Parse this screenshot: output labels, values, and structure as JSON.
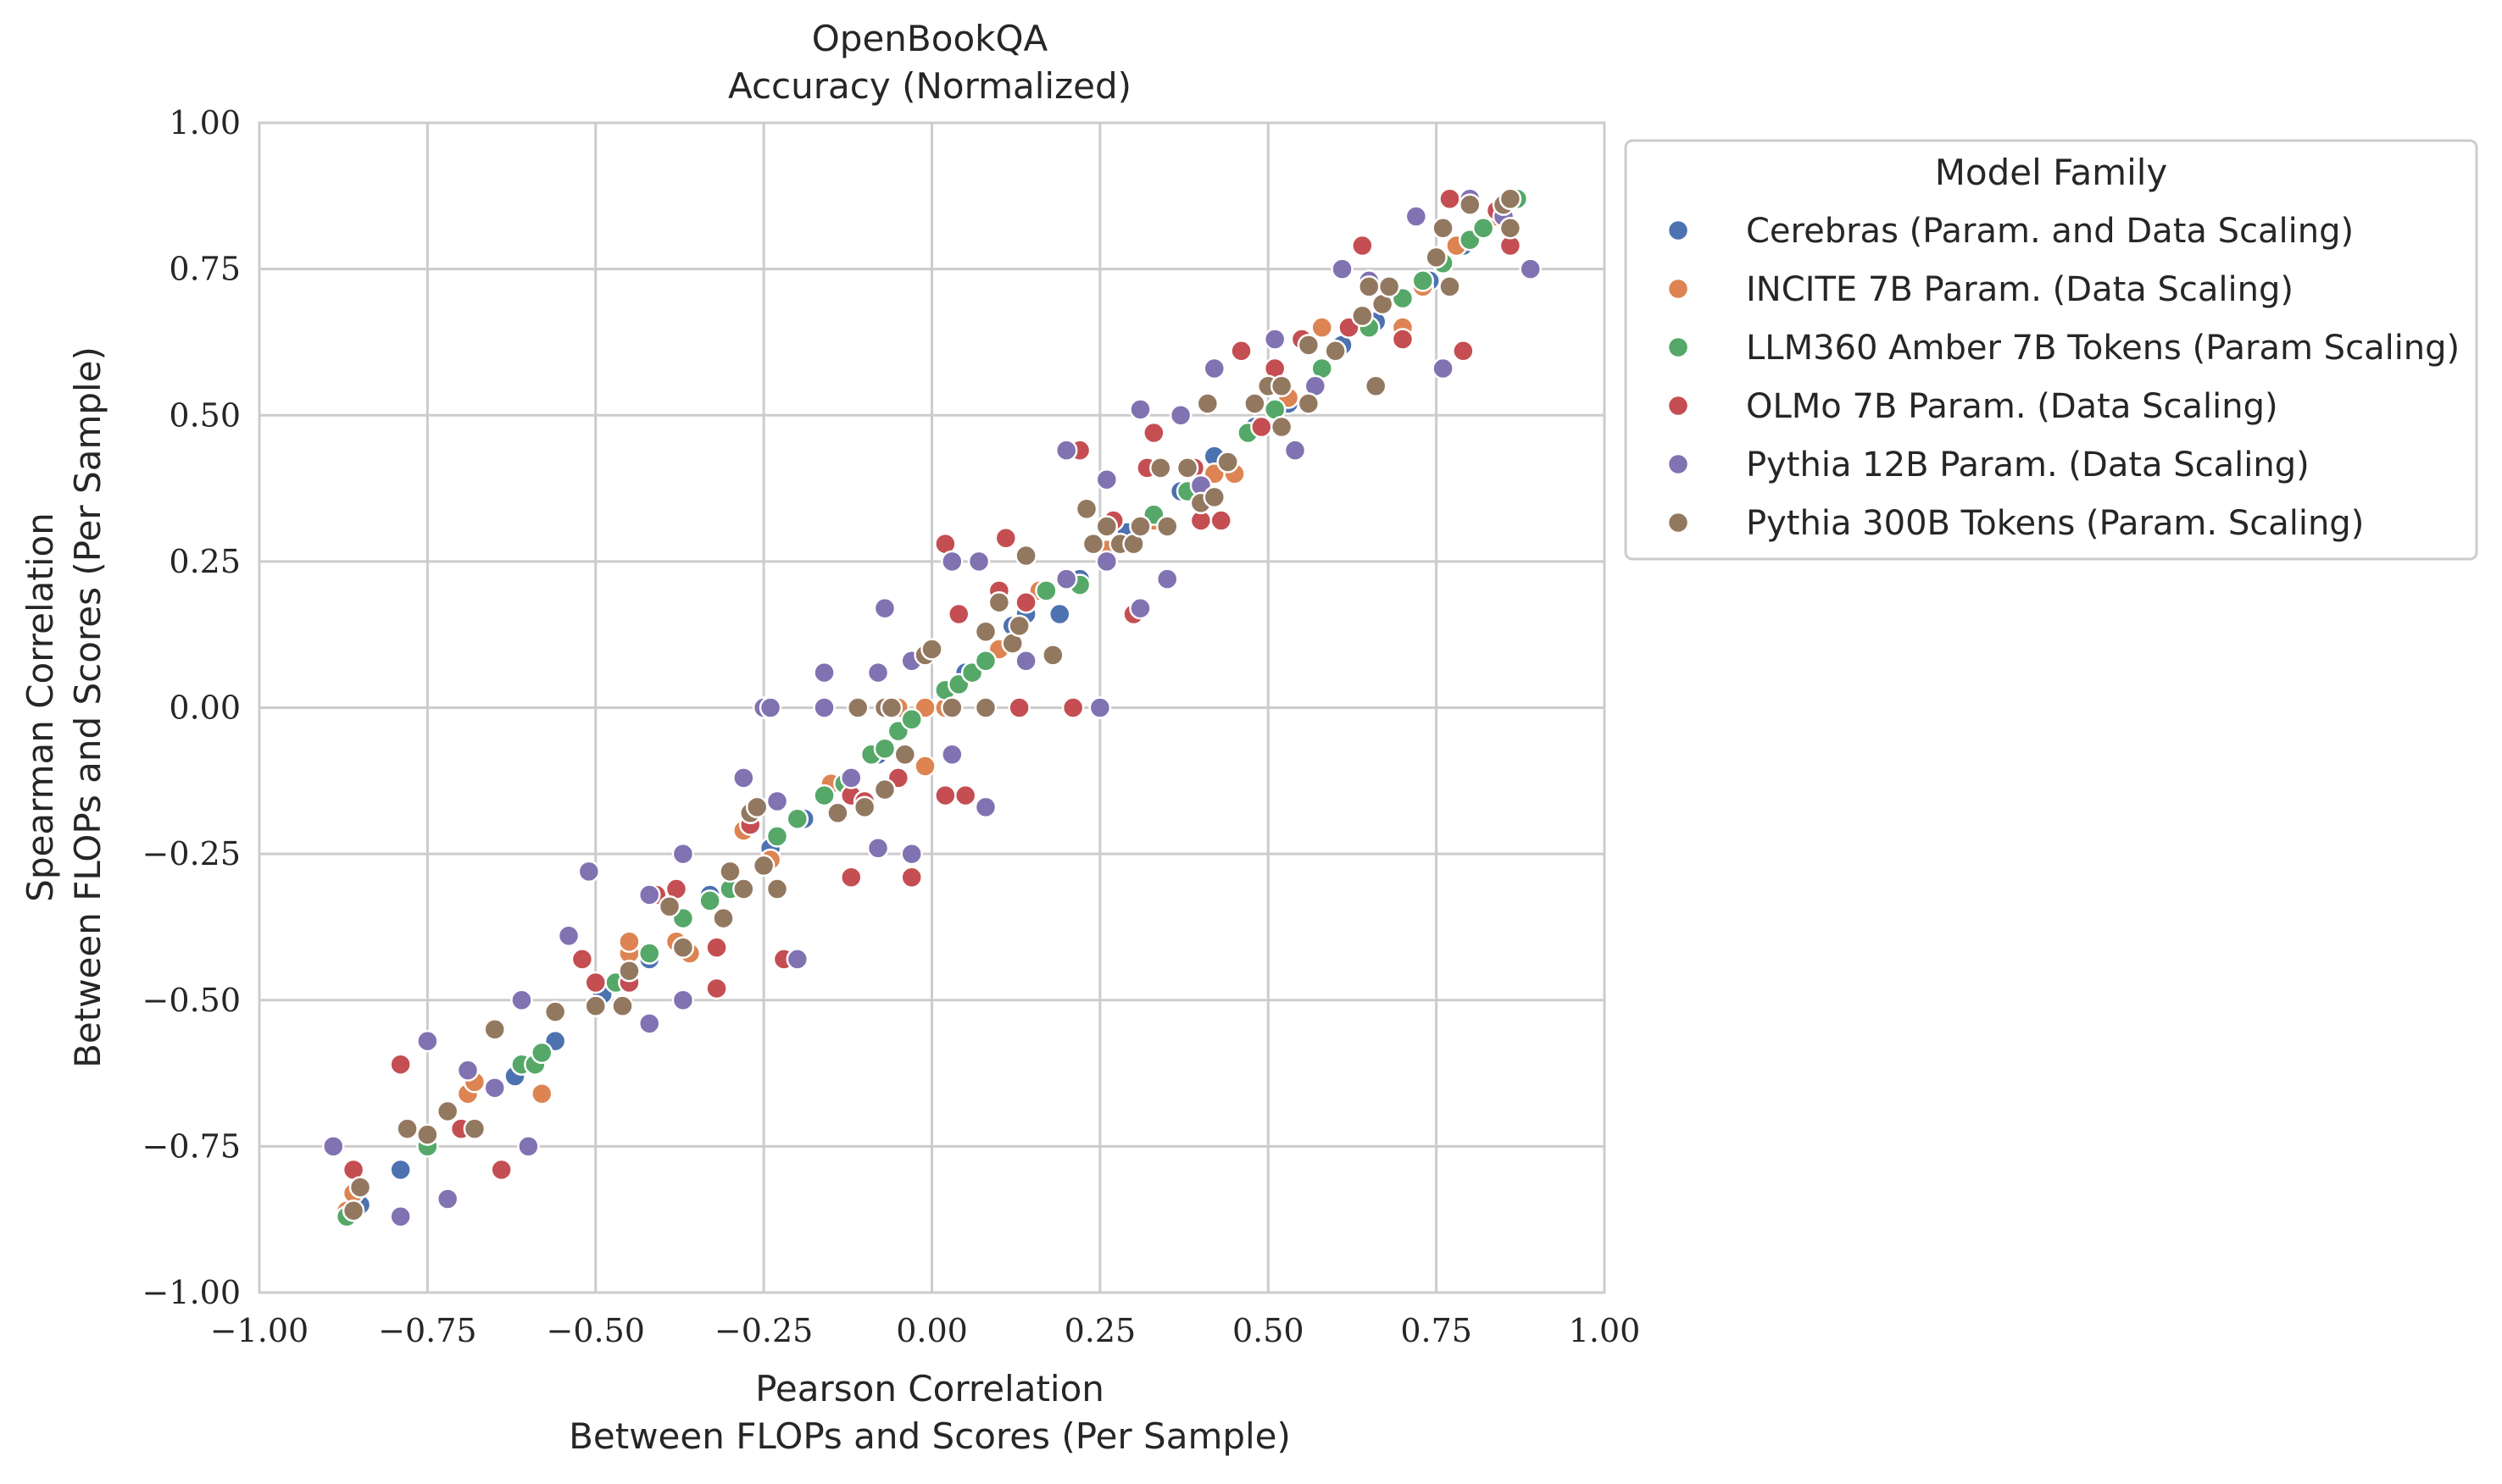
{
  "chart_data": {
    "type": "scatter",
    "title": "OpenBookQA",
    "subtitle": "Accuracy (Normalized)",
    "xlabel_line1": "Pearson Correlation",
    "xlabel_line2": "Between FLOPs and Scores (Per Sample)",
    "ylabel_line1": "Spearman Correlation",
    "ylabel_line2": "Between FLOPs and Scores (Per Sample)",
    "xlim": [
      -1.0,
      1.0
    ],
    "ylim": [
      -1.0,
      1.0
    ],
    "xticks": [
      -1.0,
      -0.75,
      -0.5,
      -0.25,
      0.0,
      0.25,
      0.5,
      0.75,
      1.0
    ],
    "yticks": [
      -1.0,
      -0.75,
      -0.5,
      -0.25,
      0.0,
      0.25,
      0.5,
      0.75,
      1.0
    ],
    "xtick_labels": [
      "−1.00",
      "−0.75",
      "−0.50",
      "−0.25",
      "0.00",
      "0.25",
      "0.50",
      "0.75",
      "1.00"
    ],
    "ytick_labels": [
      "−1.00",
      "−0.75",
      "−0.50",
      "−0.25",
      "0.00",
      "0.25",
      "0.50",
      "0.75",
      "1.00"
    ],
    "grid": true,
    "legend_title": "Model Family",
    "legend_placement": "outside right, top",
    "series": [
      {
        "name": "Cerebras (Param. and Data Scaling)",
        "color": "#4c72b0",
        "points": [
          [
            -0.79,
            -0.79
          ],
          [
            -0.85,
            -0.85
          ],
          [
            -0.62,
            -0.63
          ],
          [
            -0.6,
            -0.61
          ],
          [
            -0.56,
            -0.57
          ],
          [
            -0.49,
            -0.49
          ],
          [
            -0.42,
            -0.43
          ],
          [
            -0.33,
            -0.32
          ],
          [
            -0.3,
            -0.31
          ],
          [
            -0.24,
            -0.24
          ],
          [
            -0.19,
            -0.19
          ],
          [
            -0.13,
            -0.13
          ],
          [
            -0.08,
            -0.08
          ],
          [
            0.05,
            0.06
          ],
          [
            0.12,
            0.14
          ],
          [
            0.14,
            0.16
          ],
          [
            0.19,
            0.16
          ],
          [
            0.22,
            0.22
          ],
          [
            0.29,
            0.3
          ],
          [
            0.37,
            0.37
          ],
          [
            0.42,
            0.43
          ],
          [
            0.48,
            0.48
          ],
          [
            0.53,
            0.52
          ],
          [
            0.61,
            0.62
          ],
          [
            0.66,
            0.66
          ],
          [
            0.74,
            0.73
          ],
          [
            0.79,
            0.79
          ],
          [
            0.85,
            0.85
          ],
          [
            0.87,
            0.87
          ]
        ]
      },
      {
        "name": "INCITE 7B Param. (Data Scaling)",
        "color": "#dd8452",
        "points": [
          [
            -0.87,
            -0.86
          ],
          [
            -0.86,
            -0.83
          ],
          [
            -0.69,
            -0.66
          ],
          [
            -0.68,
            -0.64
          ],
          [
            -0.58,
            -0.66
          ],
          [
            -0.45,
            -0.42
          ],
          [
            -0.45,
            -0.4
          ],
          [
            -0.38,
            -0.4
          ],
          [
            -0.36,
            -0.42
          ],
          [
            -0.28,
            -0.21
          ],
          [
            -0.24,
            -0.26
          ],
          [
            -0.15,
            -0.13
          ],
          [
            -0.05,
            0.0
          ],
          [
            -0.01,
            0.0
          ],
          [
            0.02,
            0.0
          ],
          [
            -0.01,
            -0.1
          ],
          [
            0.1,
            0.1
          ],
          [
            0.16,
            0.2
          ],
          [
            0.26,
            0.27
          ],
          [
            0.33,
            0.32
          ],
          [
            0.42,
            0.4
          ],
          [
            0.45,
            0.4
          ],
          [
            0.53,
            0.53
          ],
          [
            0.58,
            0.65
          ],
          [
            0.7,
            0.65
          ],
          [
            0.73,
            0.72
          ],
          [
            0.78,
            0.79
          ],
          [
            0.84,
            0.84
          ],
          [
            0.87,
            0.87
          ]
        ]
      },
      {
        "name": "LLM360 Amber 7B Tokens (Param Scaling)",
        "color": "#55a868",
        "points": [
          [
            -0.87,
            -0.87
          ],
          [
            -0.75,
            -0.75
          ],
          [
            -0.61,
            -0.61
          ],
          [
            -0.59,
            -0.61
          ],
          [
            -0.58,
            -0.59
          ],
          [
            -0.5,
            -0.51
          ],
          [
            -0.47,
            -0.47
          ],
          [
            -0.42,
            -0.42
          ],
          [
            -0.37,
            -0.36
          ],
          [
            -0.33,
            -0.33
          ],
          [
            -0.3,
            -0.31
          ],
          [
            -0.23,
            -0.22
          ],
          [
            -0.2,
            -0.19
          ],
          [
            -0.16,
            -0.15
          ],
          [
            -0.13,
            -0.13
          ],
          [
            -0.09,
            -0.08
          ],
          [
            -0.07,
            -0.07
          ],
          [
            -0.05,
            -0.04
          ],
          [
            -0.03,
            -0.02
          ],
          [
            0.02,
            0.03
          ],
          [
            0.04,
            0.04
          ],
          [
            0.06,
            0.06
          ],
          [
            0.08,
            0.08
          ],
          [
            0.17,
            0.2
          ],
          [
            0.22,
            0.21
          ],
          [
            0.31,
            0.31
          ],
          [
            0.33,
            0.33
          ],
          [
            0.38,
            0.37
          ],
          [
            0.47,
            0.47
          ],
          [
            0.51,
            0.51
          ],
          [
            0.58,
            0.58
          ],
          [
            0.65,
            0.65
          ],
          [
            0.7,
            0.7
          ],
          [
            0.73,
            0.73
          ],
          [
            0.76,
            0.76
          ],
          [
            0.8,
            0.8
          ],
          [
            0.82,
            0.82
          ],
          [
            0.87,
            0.87
          ]
        ]
      },
      {
        "name": "OLMo 7B Param. (Data Scaling)",
        "color": "#c44e52",
        "points": [
          [
            -0.86,
            -0.79
          ],
          [
            -0.79,
            -0.61
          ],
          [
            -0.7,
            -0.72
          ],
          [
            -0.64,
            -0.79
          ],
          [
            -0.52,
            -0.43
          ],
          [
            -0.5,
            -0.47
          ],
          [
            -0.45,
            -0.47
          ],
          [
            -0.41,
            -0.32
          ],
          [
            -0.38,
            -0.31
          ],
          [
            -0.32,
            -0.48
          ],
          [
            -0.32,
            -0.41
          ],
          [
            -0.27,
            -0.2
          ],
          [
            -0.22,
            -0.43
          ],
          [
            -0.12,
            -0.29
          ],
          [
            -0.12,
            -0.15
          ],
          [
            -0.1,
            -0.16
          ],
          [
            -0.05,
            -0.12
          ],
          [
            -0.03,
            -0.29
          ],
          [
            0.02,
            -0.15
          ],
          [
            0.05,
            -0.15
          ],
          [
            0.04,
            0.16
          ],
          [
            0.1,
            0.2
          ],
          [
            0.11,
            0.29
          ],
          [
            0.14,
            0.18
          ],
          [
            0.13,
            0.0
          ],
          [
            0.21,
            0.0
          ],
          [
            0.25,
            0.0
          ],
          [
            0.27,
            0.32
          ],
          [
            0.3,
            0.16
          ],
          [
            0.32,
            0.41
          ],
          [
            0.33,
            0.47
          ],
          [
            0.39,
            0.41
          ],
          [
            0.4,
            0.32
          ],
          [
            0.43,
            0.32
          ],
          [
            0.46,
            0.61
          ],
          [
            0.49,
            0.48
          ],
          [
            0.51,
            0.58
          ],
          [
            0.55,
            0.63
          ],
          [
            0.62,
            0.65
          ],
          [
            0.64,
            0.79
          ],
          [
            0.7,
            0.63
          ],
          [
            0.77,
            0.87
          ],
          [
            0.79,
            0.61
          ],
          [
            0.86,
            0.79
          ],
          [
            0.84,
            0.85
          ],
          [
            0.02,
            0.28
          ],
          [
            0.22,
            0.44
          ]
        ]
      },
      {
        "name": "Pythia 12B Param. (Data Scaling)",
        "color": "#8172b2",
        "points": [
          [
            -0.89,
            -0.75
          ],
          [
            -0.79,
            -0.87
          ],
          [
            -0.75,
            -0.57
          ],
          [
            -0.72,
            -0.84
          ],
          [
            -0.69,
            -0.62
          ],
          [
            -0.65,
            -0.65
          ],
          [
            -0.61,
            -0.5
          ],
          [
            -0.6,
            -0.75
          ],
          [
            -0.54,
            -0.39
          ],
          [
            -0.51,
            -0.28
          ],
          [
            -0.42,
            -0.54
          ],
          [
            -0.42,
            -0.32
          ],
          [
            -0.37,
            -0.5
          ],
          [
            -0.37,
            -0.25
          ],
          [
            -0.28,
            -0.12
          ],
          [
            -0.25,
            0.0
          ],
          [
            -0.24,
            0.0
          ],
          [
            -0.23,
            -0.16
          ],
          [
            -0.2,
            -0.43
          ],
          [
            -0.16,
            0.06
          ],
          [
            -0.16,
            0.0
          ],
          [
            -0.12,
            -0.12
          ],
          [
            -0.08,
            0.06
          ],
          [
            -0.08,
            -0.24
          ],
          [
            -0.07,
            0.17
          ],
          [
            -0.03,
            -0.25
          ],
          [
            -0.03,
            0.08
          ],
          [
            0.03,
            0.25
          ],
          [
            0.03,
            -0.08
          ],
          [
            0.07,
            0.25
          ],
          [
            0.08,
            -0.17
          ],
          [
            0.14,
            0.08
          ],
          [
            0.2,
            0.22
          ],
          [
            0.2,
            0.44
          ],
          [
            0.25,
            0.0
          ],
          [
            0.26,
            0.25
          ],
          [
            0.26,
            0.39
          ],
          [
            0.31,
            0.17
          ],
          [
            0.31,
            0.51
          ],
          [
            0.35,
            0.22
          ],
          [
            0.37,
            0.5
          ],
          [
            0.4,
            0.38
          ],
          [
            0.42,
            0.58
          ],
          [
            0.51,
            0.63
          ],
          [
            0.54,
            0.44
          ],
          [
            0.57,
            0.55
          ],
          [
            0.61,
            0.75
          ],
          [
            0.65,
            0.73
          ],
          [
            0.72,
            0.84
          ],
          [
            0.76,
            0.58
          ],
          [
            0.8,
            0.87
          ],
          [
            0.85,
            0.84
          ],
          [
            0.89,
            0.75
          ]
        ]
      },
      {
        "name": "Pythia 300B Tokens (Param. Scaling)",
        "color": "#937860",
        "points": [
          [
            -0.86,
            -0.86
          ],
          [
            -0.85,
            -0.82
          ],
          [
            -0.78,
            -0.72
          ],
          [
            -0.75,
            -0.73
          ],
          [
            -0.72,
            -0.69
          ],
          [
            -0.68,
            -0.72
          ],
          [
            -0.65,
            -0.55
          ],
          [
            -0.56,
            -0.52
          ],
          [
            -0.5,
            -0.51
          ],
          [
            -0.46,
            -0.51
          ],
          [
            -0.45,
            -0.45
          ],
          [
            -0.39,
            -0.34
          ],
          [
            -0.37,
            -0.41
          ],
          [
            -0.31,
            -0.36
          ],
          [
            -0.3,
            -0.28
          ],
          [
            -0.28,
            -0.31
          ],
          [
            -0.27,
            -0.18
          ],
          [
            -0.26,
            -0.17
          ],
          [
            -0.25,
            -0.27
          ],
          [
            -0.23,
            -0.31
          ],
          [
            -0.14,
            -0.18
          ],
          [
            -0.11,
            0.0
          ],
          [
            -0.1,
            -0.17
          ],
          [
            -0.07,
            0.0
          ],
          [
            -0.07,
            -0.14
          ],
          [
            -0.06,
            0.0
          ],
          [
            -0.04,
            -0.08
          ],
          [
            -0.01,
            0.09
          ],
          [
            0.0,
            0.1
          ],
          [
            0.03,
            0.0
          ],
          [
            0.08,
            0.0
          ],
          [
            0.08,
            0.13
          ],
          [
            0.1,
            0.18
          ],
          [
            0.12,
            0.11
          ],
          [
            0.13,
            0.14
          ],
          [
            0.14,
            0.26
          ],
          [
            0.18,
            0.09
          ],
          [
            0.23,
            0.34
          ],
          [
            0.24,
            0.28
          ],
          [
            0.26,
            0.31
          ],
          [
            0.28,
            0.28
          ],
          [
            0.3,
            0.28
          ],
          [
            0.31,
            0.31
          ],
          [
            0.34,
            0.41
          ],
          [
            0.35,
            0.31
          ],
          [
            0.38,
            0.41
          ],
          [
            0.4,
            0.35
          ],
          [
            0.41,
            0.52
          ],
          [
            0.42,
            0.36
          ],
          [
            0.44,
            0.42
          ],
          [
            0.48,
            0.52
          ],
          [
            0.5,
            0.55
          ],
          [
            0.52,
            0.48
          ],
          [
            0.52,
            0.55
          ],
          [
            0.56,
            0.52
          ],
          [
            0.56,
            0.62
          ],
          [
            0.6,
            0.61
          ],
          [
            0.64,
            0.67
          ],
          [
            0.66,
            0.55
          ],
          [
            0.67,
            0.69
          ],
          [
            0.68,
            0.72
          ],
          [
            0.75,
            0.77
          ],
          [
            0.76,
            0.82
          ],
          [
            0.77,
            0.72
          ],
          [
            0.8,
            0.86
          ],
          [
            0.85,
            0.86
          ],
          [
            0.86,
            0.82
          ],
          [
            0.86,
            0.87
          ],
          [
            0.65,
            0.72
          ]
        ]
      }
    ]
  }
}
